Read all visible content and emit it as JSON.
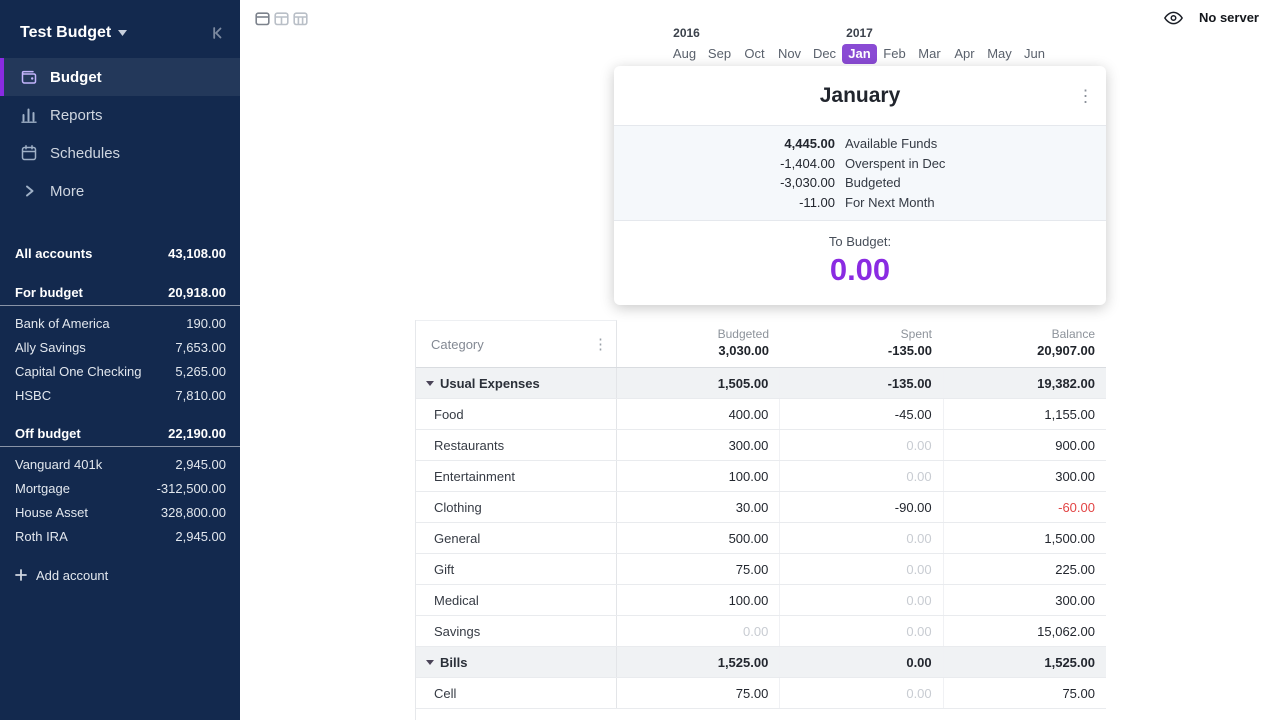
{
  "colors": {
    "month_accent": "#8a4bd4",
    "to_budget_purple": "#8a2be2",
    "negative_red": "#e24444",
    "sidebar_navy": "#13294e"
  },
  "app": {
    "server_status": "No server"
  },
  "sidebar": {
    "title": "Test Budget",
    "nav": [
      {
        "label": "Budget",
        "icon": "wallet-icon",
        "active": true
      },
      {
        "label": "Reports",
        "icon": "bar-chart-icon"
      },
      {
        "label": "Schedules",
        "icon": "calendar-icon"
      },
      {
        "label": "More",
        "icon": "chevron-right-icon"
      }
    ],
    "sections": [
      {
        "label": "All accounts",
        "value": "43,108.00",
        "underline": false,
        "accounts": []
      },
      {
        "label": "For budget",
        "value": "20,918.00",
        "underline": true,
        "accounts": [
          {
            "name": "Bank of America",
            "value": "190.00"
          },
          {
            "name": "Ally Savings",
            "value": "7,653.00"
          },
          {
            "name": "Capital One Checking",
            "value": "5,265.00"
          },
          {
            "name": "HSBC",
            "value": "7,810.00"
          }
        ]
      },
      {
        "label": "Off budget",
        "value": "22,190.00",
        "underline": true,
        "accounts": [
          {
            "name": "Vanguard 401k",
            "value": "2,945.00"
          },
          {
            "name": "Mortgage",
            "value": "-312,500.00"
          },
          {
            "name": "House Asset",
            "value": "328,800.00"
          },
          {
            "name": "Roth IRA",
            "value": "2,945.00"
          }
        ]
      }
    ],
    "add_account": "Add account"
  },
  "month_picker": {
    "years": [
      {
        "label": "2016",
        "month_index": 0
      },
      {
        "label": "2017",
        "month_index": 5
      }
    ],
    "months": [
      "Aug",
      "Sep",
      "Oct",
      "Nov",
      "Dec",
      "Jan",
      "Feb",
      "Mar",
      "Apr",
      "May",
      "Jun"
    ],
    "selected": "Jan"
  },
  "summary": {
    "title": "January",
    "rows": [
      {
        "amount": "4,445.00",
        "label": "Available Funds",
        "bold": true
      },
      {
        "amount": "-1,404.00",
        "label": "Overspent in Dec"
      },
      {
        "amount": "-3,030.00",
        "label": "Budgeted"
      },
      {
        "amount": "-11.00",
        "label": "For Next Month"
      }
    ],
    "to_budget_label": "To Budget:",
    "to_budget_value": "0.00"
  },
  "table": {
    "category_header": "Category",
    "columns": [
      {
        "label": "Budgeted",
        "total": "3,030.00"
      },
      {
        "label": "Spent",
        "total": "-135.00"
      },
      {
        "label": "Balance",
        "total": "20,907.00"
      }
    ],
    "groups": [
      {
        "name": "Usual Expenses",
        "budgeted": "1,505.00",
        "spent": "-135.00",
        "balance": "19,382.00",
        "rows": [
          {
            "name": "Food",
            "budgeted": "400.00",
            "spent": "-45.00",
            "balance": "1,155.00"
          },
          {
            "name": "Restaurants",
            "budgeted": "300.00",
            "spent": "0.00",
            "spent_muted": true,
            "balance": "900.00"
          },
          {
            "name": "Entertainment",
            "budgeted": "100.00",
            "spent": "0.00",
            "spent_muted": true,
            "balance": "300.00"
          },
          {
            "name": "Clothing",
            "budgeted": "30.00",
            "spent": "-90.00",
            "balance": "-60.00",
            "balance_negative": true
          },
          {
            "name": "General",
            "budgeted": "500.00",
            "spent": "0.00",
            "spent_muted": true,
            "balance": "1,500.00"
          },
          {
            "name": "Gift",
            "budgeted": "75.00",
            "spent": "0.00",
            "spent_muted": true,
            "balance": "225.00"
          },
          {
            "name": "Medical",
            "budgeted": "100.00",
            "spent": "0.00",
            "spent_muted": true,
            "balance": "300.00"
          },
          {
            "name": "Savings",
            "budgeted": "0.00",
            "budgeted_muted": true,
            "spent": "0.00",
            "spent_muted": true,
            "balance": "15,062.00"
          }
        ]
      },
      {
        "name": "Bills",
        "budgeted": "1,525.00",
        "spent": "0.00",
        "balance": "1,525.00",
        "rows": [
          {
            "name": "Cell",
            "budgeted": "75.00",
            "spent": "0.00",
            "spent_muted": true,
            "balance": "75.00"
          }
        ]
      }
    ]
  }
}
